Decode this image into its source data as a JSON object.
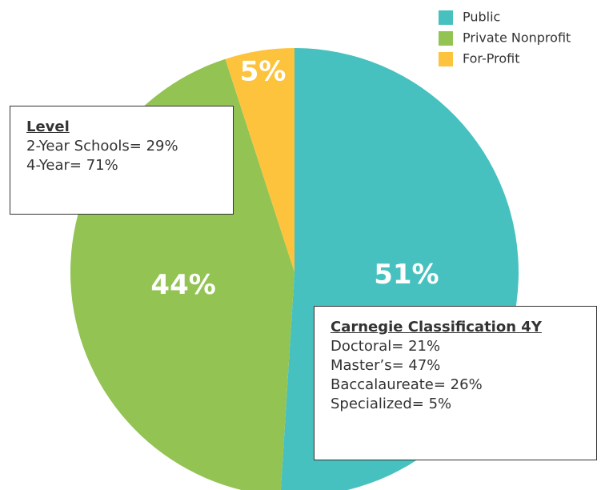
{
  "chart_data": {
    "type": "pie",
    "categories": [
      "Public",
      "Private Nonprofit",
      "For-Profit"
    ],
    "values": [
      51,
      44,
      5
    ],
    "value_labels": [
      "51%",
      "44%",
      "5%"
    ],
    "colors": [
      "#47c1bf",
      "#92c353",
      "#fdc33c"
    ],
    "annotations": [
      {
        "title": "Level",
        "lines": [
          "2-Year Schools= 29%",
          "4-Year= 71%"
        ]
      },
      {
        "title": "Carnegie Classification 4Y",
        "lines": [
          "Doctoral= 21%",
          "Master’s= 47%",
          "Baccalaureate= 26%",
          "Specialized= 5%"
        ]
      }
    ]
  }
}
